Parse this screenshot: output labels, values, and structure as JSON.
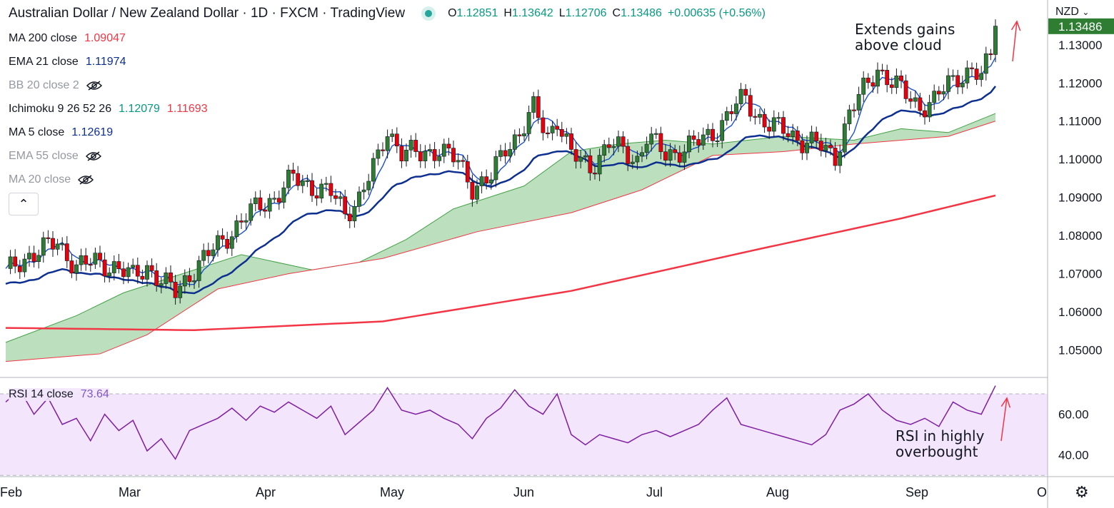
{
  "header": {
    "title": "Australian Dollar / New Zealand Dollar · 1D · FXCM · TradingView",
    "ohlc": [
      {
        "k": "O",
        "v": "1.12851"
      },
      {
        "k": "H",
        "v": "1.13642"
      },
      {
        "k": "L",
        "v": "1.12706"
      },
      {
        "k": "C",
        "v": "1.13486"
      },
      {
        "k": "",
        "v": "+0.00635 (+0.56%)"
      }
    ]
  },
  "legend": [
    {
      "name": "MA 200 close",
      "values": [
        "1.09047"
      ],
      "colors": [
        "#f23645"
      ],
      "hidden": false
    },
    {
      "name": "EMA 21 close",
      "values": [
        "1.11974"
      ],
      "colors": [
        "#0d2f8f"
      ],
      "hidden": false
    },
    {
      "name": "BB 20 close 2",
      "values": [],
      "colors": [],
      "hidden": true
    },
    {
      "name": "Ichimoku 9 26 52 26",
      "values": [
        "1.12079",
        "1.11693"
      ],
      "colors": [
        "#089981",
        "#f23645"
      ],
      "hidden": false
    },
    {
      "name": "MA 5 close",
      "values": [
        "1.12619"
      ],
      "colors": [
        "#0d2f8f"
      ],
      "hidden": false
    },
    {
      "name": "EMA 55 close",
      "values": [],
      "colors": [],
      "hidden": true
    },
    {
      "name": "MA 20 close",
      "values": [],
      "colors": [],
      "hidden": true
    }
  ],
  "collapse_icon": "chevron-up-icon",
  "currency": "NZD",
  "last_price_label": "1.13486",
  "rsi": {
    "name": "RSI 14 close",
    "value": "73.64"
  },
  "annotations": {
    "top": [
      "Extends gains",
      "above cloud"
    ],
    "bottom": [
      "RSI in highly",
      "overbought"
    ]
  },
  "settings_icon": "gear-icon",
  "colors": {
    "bull": "#2e7d32",
    "bear": "#e8000b",
    "ma200": "#f23645",
    "ema21": "#0d2f8f",
    "cloud": "#a5d6a7",
    "rsi_line": "#7e1fa2",
    "rsi_band": "#f3e5fc",
    "arrow": "#f23645"
  },
  "chart_data": {
    "type": "candlestick",
    "price_axis": {
      "ticks": [
        "1.13000",
        "1.12000",
        "1.11000",
        "1.10000",
        "1.09000",
        "1.08000",
        "1.07000",
        "1.06000",
        "1.05000"
      ],
      "ylim": [
        1.0445,
        1.1395
      ]
    },
    "rsi_axis": {
      "ticks": [
        "60.00",
        "40.00"
      ],
      "ylim": [
        28,
        77
      ],
      "bands": [
        30,
        70
      ]
    },
    "time_axis": {
      "ticks": [
        "Feb",
        "Mar",
        "Apr",
        "May",
        "Jun",
        "Jul",
        "Aug",
        "Sep",
        "O"
      ]
    },
    "anchors": [
      {
        "i": 0,
        "p": 1.07
      },
      {
        "i": 5,
        "p": 1.075
      },
      {
        "i": 11,
        "p": 1.078
      },
      {
        "i": 15,
        "p": 1.072
      },
      {
        "i": 19,
        "p": 1.073
      },
      {
        "i": 23,
        "p": 1.072
      },
      {
        "i": 27,
        "p": 1.069
      },
      {
        "i": 30,
        "p": 1.072
      },
      {
        "i": 33,
        "p": 1.068
      },
      {
        "i": 36,
        "p": 1.065
      },
      {
        "i": 39,
        "p": 1.07
      },
      {
        "i": 43,
        "p": 1.075
      },
      {
        "i": 47,
        "p": 1.08
      },
      {
        "i": 51,
        "p": 1.085
      },
      {
        "i": 54,
        "p": 1.088
      },
      {
        "i": 57,
        "p": 1.09
      },
      {
        "i": 61,
        "p": 1.095
      },
      {
        "i": 65,
        "p": 1.093
      },
      {
        "i": 69,
        "p": 1.091
      },
      {
        "i": 72,
        "p": 1.086
      },
      {
        "i": 75,
        "p": 1.09
      },
      {
        "i": 79,
        "p": 1.1
      },
      {
        "i": 81,
        "p": 1.108
      },
      {
        "i": 84,
        "p": 1.102
      },
      {
        "i": 88,
        "p": 1.101
      },
      {
        "i": 92,
        "p": 1.103
      },
      {
        "i": 96,
        "p": 1.099
      },
      {
        "i": 99,
        "p": 1.093
      },
      {
        "i": 103,
        "p": 1.095
      },
      {
        "i": 106,
        "p": 1.103
      },
      {
        "i": 109,
        "p": 1.107
      },
      {
        "i": 112,
        "p": 1.113
      },
      {
        "i": 115,
        "p": 1.106
      },
      {
        "i": 117,
        "p": 1.111
      },
      {
        "i": 120,
        "p": 1.101
      },
      {
        "i": 124,
        "p": 1.098
      },
      {
        "i": 128,
        "p": 1.104
      },
      {
        "i": 131,
        "p": 1.102
      },
      {
        "i": 134,
        "p": 1.1
      },
      {
        "i": 136,
        "p": 1.106
      },
      {
        "i": 140,
        "p": 1.101
      },
      {
        "i": 144,
        "p": 1.103
      },
      {
        "i": 148,
        "p": 1.105
      },
      {
        "i": 151,
        "p": 1.108
      },
      {
        "i": 154,
        "p": 1.113
      },
      {
        "i": 157,
        "p": 1.116
      },
      {
        "i": 159,
        "p": 1.112
      },
      {
        "i": 162,
        "p": 1.109
      },
      {
        "i": 166,
        "p": 1.107
      },
      {
        "i": 169,
        "p": 1.105
      },
      {
        "i": 172,
        "p": 1.104
      },
      {
        "i": 174,
        "p": 1.102
      },
      {
        "i": 176,
        "p": 1.101
      },
      {
        "i": 179,
        "p": 1.112
      },
      {
        "i": 182,
        "p": 1.118
      },
      {
        "i": 185,
        "p": 1.124
      },
      {
        "i": 188,
        "p": 1.12
      },
      {
        "i": 191,
        "p": 1.117
      },
      {
        "i": 194,
        "p": 1.114
      },
      {
        "i": 197,
        "p": 1.115
      },
      {
        "i": 200,
        "p": 1.12
      },
      {
        "i": 202,
        "p": 1.122
      },
      {
        "i": 205,
        "p": 1.123
      },
      {
        "i": 207,
        "p": 1.121
      },
      {
        "i": 209,
        "p": 1.128
      },
      {
        "i": 210,
        "p": 1.1349
      }
    ],
    "ma200": [
      [
        0,
        1.0558
      ],
      [
        40,
        1.0552
      ],
      [
        80,
        1.0575
      ],
      [
        120,
        1.0655
      ],
      [
        160,
        1.0765
      ],
      [
        190,
        1.0845
      ],
      [
        210,
        1.0905
      ]
    ],
    "cloud_lower": [
      [
        0,
        1.047
      ],
      [
        20,
        1.049
      ],
      [
        30,
        1.054
      ],
      [
        45,
        1.066
      ],
      [
        60,
        1.07
      ],
      [
        80,
        1.074
      ],
      [
        100,
        1.081
      ],
      [
        120,
        1.086
      ],
      [
        135,
        1.092
      ],
      [
        150,
        1.101
      ],
      [
        165,
        1.102
      ],
      [
        180,
        1.104
      ],
      [
        200,
        1.106
      ],
      [
        210,
        1.11
      ]
    ],
    "cloud_upper": [
      [
        0,
        1.052
      ],
      [
        15,
        1.059
      ],
      [
        25,
        1.065
      ],
      [
        35,
        1.069
      ],
      [
        50,
        1.075
      ],
      [
        65,
        1.071
      ],
      [
        75,
        1.073
      ],
      [
        85,
        1.079
      ],
      [
        95,
        1.087
      ],
      [
        110,
        1.093
      ],
      [
        120,
        1.102
      ],
      [
        130,
        1.104
      ],
      [
        140,
        1.105
      ],
      [
        150,
        1.104
      ],
      [
        165,
        1.106
      ],
      [
        180,
        1.105
      ],
      [
        190,
        1.108
      ],
      [
        200,
        1.107
      ],
      [
        210,
        1.112
      ]
    ],
    "rsi": [
      [
        0,
        66
      ],
      [
        3,
        72
      ],
      [
        6,
        60
      ],
      [
        9,
        68
      ],
      [
        12,
        55
      ],
      [
        15,
        58
      ],
      [
        18,
        47
      ],
      [
        21,
        60
      ],
      [
        24,
        52
      ],
      [
        27,
        57
      ],
      [
        30,
        42
      ],
      [
        33,
        48
      ],
      [
        36,
        38
      ],
      [
        39,
        52
      ],
      [
        42,
        55
      ],
      [
        45,
        58
      ],
      [
        48,
        63
      ],
      [
        51,
        57
      ],
      [
        54,
        64
      ],
      [
        57,
        61
      ],
      [
        60,
        66
      ],
      [
        63,
        62
      ],
      [
        66,
        58
      ],
      [
        69,
        64
      ],
      [
        72,
        50
      ],
      [
        75,
        56
      ],
      [
        78,
        62
      ],
      [
        81,
        73
      ],
      [
        84,
        62
      ],
      [
        87,
        60
      ],
      [
        90,
        62
      ],
      [
        93,
        58
      ],
      [
        96,
        55
      ],
      [
        99,
        48
      ],
      [
        102,
        58
      ],
      [
        105,
        63
      ],
      [
        108,
        72
      ],
      [
        111,
        64
      ],
      [
        114,
        60
      ],
      [
        117,
        70
      ],
      [
        120,
        50
      ],
      [
        123,
        45
      ],
      [
        126,
        50
      ],
      [
        129,
        48
      ],
      [
        132,
        46
      ],
      [
        135,
        50
      ],
      [
        138,
        52
      ],
      [
        141,
        49
      ],
      [
        144,
        52
      ],
      [
        147,
        55
      ],
      [
        150,
        62
      ],
      [
        153,
        68
      ],
      [
        156,
        55
      ],
      [
        159,
        53
      ],
      [
        162,
        51
      ],
      [
        165,
        49
      ],
      [
        168,
        47
      ],
      [
        171,
        45
      ],
      [
        174,
        50
      ],
      [
        177,
        62
      ],
      [
        180,
        65
      ],
      [
        183,
        70
      ],
      [
        186,
        62
      ],
      [
        189,
        57
      ],
      [
        192,
        55
      ],
      [
        195,
        58
      ],
      [
        198,
        54
      ],
      [
        201,
        66
      ],
      [
        204,
        62
      ],
      [
        207,
        60
      ],
      [
        210,
        74
      ]
    ]
  }
}
